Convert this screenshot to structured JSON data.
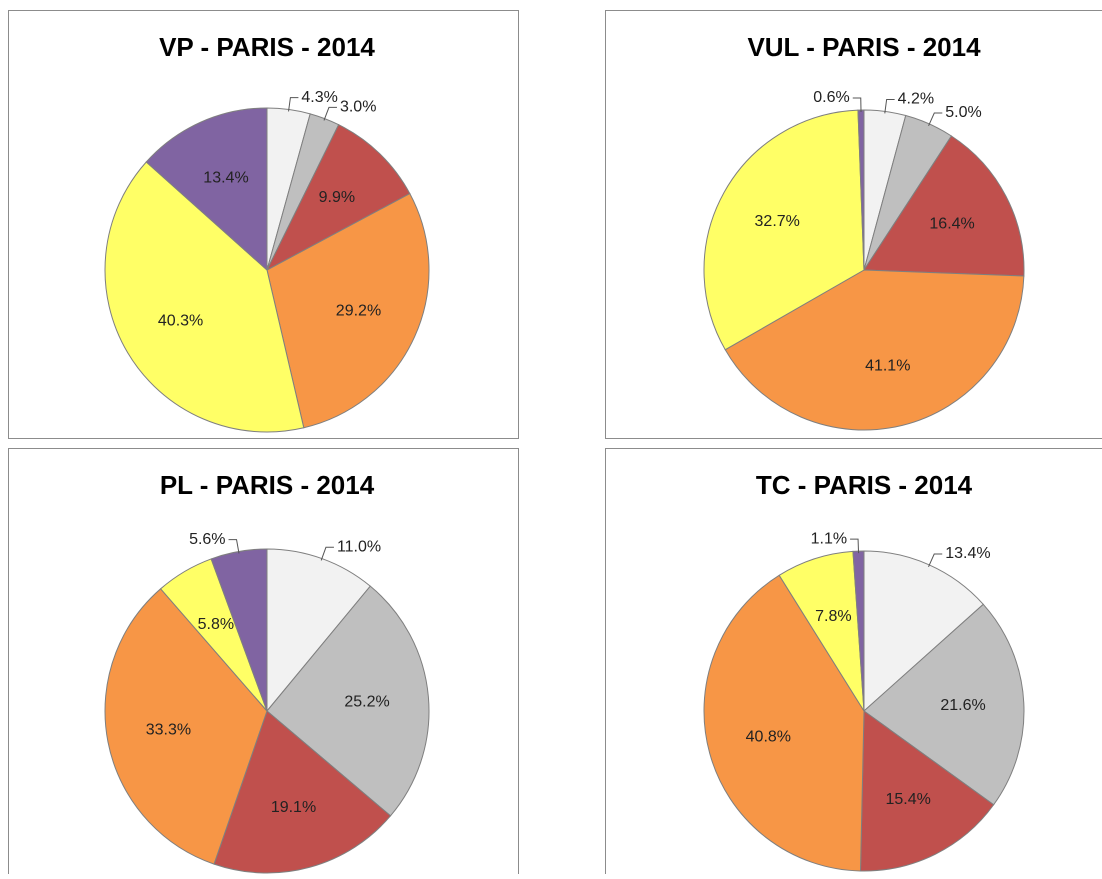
{
  "chart_data": [
    {
      "type": "pie",
      "title": "VP - PARIS - 2014",
      "values": [
        4.3,
        3.0,
        9.9,
        29.2,
        40.3,
        13.4
      ],
      "value_labels": [
        "4.3%",
        "3.0%",
        "9.9%",
        "29.2%",
        "40.3%",
        "13.4%"
      ],
      "colors": [
        "#f2f2f2",
        "#bfbfbf",
        "#c0504d",
        "#f79646",
        "#ffff66",
        "#8064a2"
      ]
    },
    {
      "type": "pie",
      "title": "VUL - PARIS - 2014",
      "values": [
        4.2,
        5.0,
        16.4,
        41.1,
        32.7,
        0.6
      ],
      "value_labels": [
        "4.2%",
        "5.0%",
        "16.4%",
        "41.1%",
        "32.7%",
        "0.6%"
      ],
      "colors": [
        "#f2f2f2",
        "#bfbfbf",
        "#c0504d",
        "#f79646",
        "#ffff66",
        "#8064a2"
      ]
    },
    {
      "type": "pie",
      "title": "PL - PARIS - 2014",
      "values": [
        11.0,
        25.2,
        19.1,
        33.3,
        5.8,
        5.6
      ],
      "value_labels": [
        "11.0%",
        "25.2%",
        "19.1%",
        "33.3%",
        "5.8%",
        "5.6%"
      ],
      "colors": [
        "#f2f2f2",
        "#bfbfbf",
        "#c0504d",
        "#f79646",
        "#ffff66",
        "#8064a2"
      ]
    },
    {
      "type": "pie",
      "title": "TC - PARIS - 2014",
      "values": [
        13.4,
        21.6,
        15.4,
        40.8,
        7.8,
        1.1
      ],
      "value_labels": [
        "13.4%",
        "21.6%",
        "15.4%",
        "40.8%",
        "7.8%",
        "1.1%"
      ],
      "colors": [
        "#f2f2f2",
        "#bfbfbf",
        "#c0504d",
        "#f79646",
        "#ffff66",
        "#8064a2"
      ]
    }
  ]
}
